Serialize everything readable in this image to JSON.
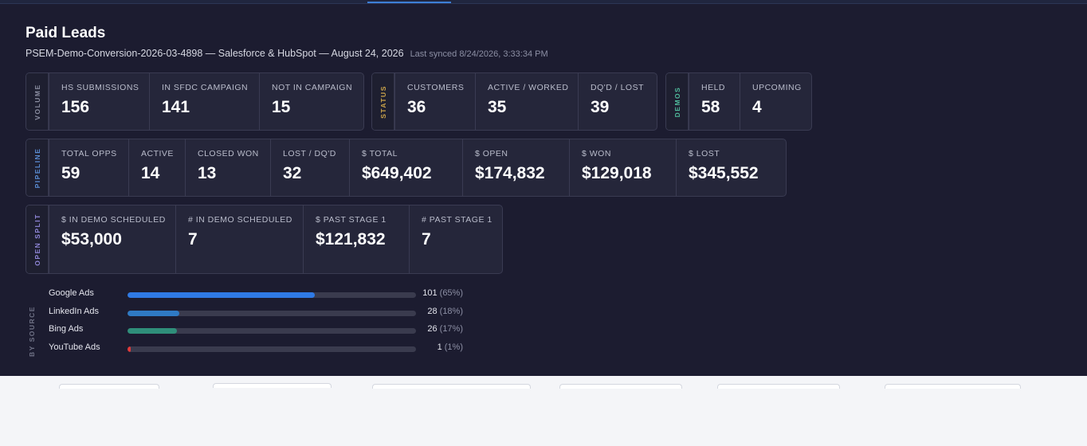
{
  "header": {
    "title": "Paid Leads",
    "subtitle": "PSEM-Demo-Conversion-2026-03-4898 — Salesforce & HubSpot — August 24, 2026",
    "last_synced": "Last synced 8/24/2026, 3:33:34 PM"
  },
  "colors": {
    "volume_label": "#8a8da0",
    "status_label": "#c9a24a",
    "demos_label": "#4fb89a",
    "pipeline_label": "#5b8fd8",
    "open_split_label": "#8f86d8",
    "google_bar": "#2f7ae5",
    "linkedin_bar": "#2f7ac4",
    "bing_bar": "#2f8f7a",
    "youtube_bar": "#e03a3a"
  },
  "volume": {
    "label": "VOLUME",
    "stats": [
      {
        "label": "HS SUBMISSIONS",
        "value": "156"
      },
      {
        "label": "IN SFDC CAMPAIGN",
        "value": "141"
      },
      {
        "label": "NOT IN CAMPAIGN",
        "value": "15"
      }
    ]
  },
  "status": {
    "label": "STATUS",
    "stats": [
      {
        "label": "CUSTOMERS",
        "value": "36"
      },
      {
        "label": "ACTIVE / WORKED",
        "value": "35"
      },
      {
        "label": "DQ'D / LOST",
        "value": "39"
      }
    ]
  },
  "demos": {
    "label": "DEMOS",
    "stats": [
      {
        "label": "HELD",
        "value": "58"
      },
      {
        "label": "UPCOMING",
        "value": "4"
      }
    ]
  },
  "pipeline": {
    "label": "PIPELINE",
    "stats": [
      {
        "label": "TOTAL OPPS",
        "value": "59"
      },
      {
        "label": "ACTIVE",
        "value": "14"
      },
      {
        "label": "CLOSED WON",
        "value": "13"
      },
      {
        "label": "LOST / DQ'D",
        "value": "32"
      },
      {
        "label": "$ TOTAL",
        "value": "$649,402"
      },
      {
        "label": "$ OPEN",
        "value": "$174,832"
      },
      {
        "label": "$ WON",
        "value": "$129,018"
      },
      {
        "label": "$ LOST",
        "value": "$345,552"
      }
    ]
  },
  "open_split": {
    "label": "OPEN SPLIT",
    "stats": [
      {
        "label": "$ IN DEMO SCHEDULED",
        "value": "$53,000"
      },
      {
        "label": "# IN DEMO SCHEDULED",
        "value": "7"
      },
      {
        "label": "$ PAST STAGE 1",
        "value": "$121,832"
      },
      {
        "label": "# PAST STAGE 1",
        "value": "7"
      }
    ]
  },
  "by_source": {
    "label": "BY SOURCE",
    "items": [
      {
        "name": "Google Ads",
        "count": "101",
        "pct": "(65%)",
        "fraction": 0.65
      },
      {
        "name": "LinkedIn Ads",
        "count": "28",
        "pct": "(18%)",
        "fraction": 0.18
      },
      {
        "name": "Bing Ads",
        "count": "26",
        "pct": "(17%)",
        "fraction": 0.17
      },
      {
        "name": "YouTube Ads",
        "count": "1",
        "pct": "(1%)",
        "fraction": 0.01
      }
    ]
  }
}
